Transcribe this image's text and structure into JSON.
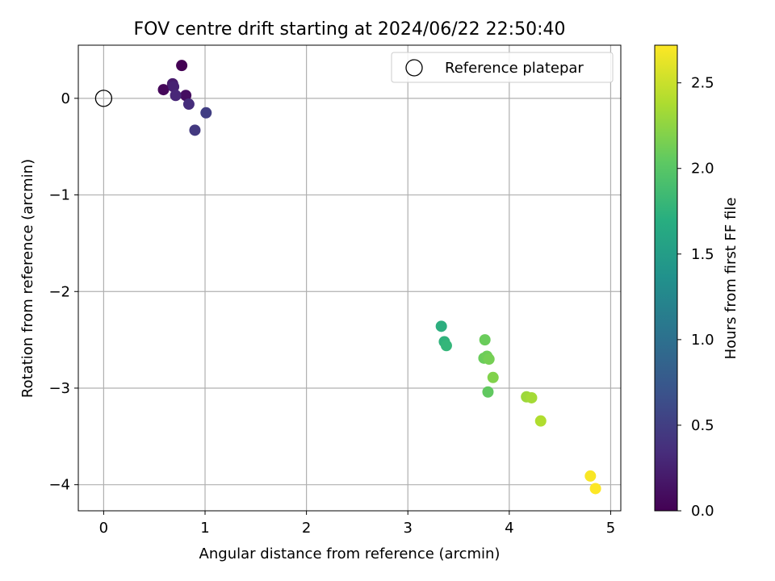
{
  "chart_data": {
    "type": "scatter",
    "title": "FOV centre drift starting at 2024/06/22 22:50:40",
    "xlabel": "Angular distance from reference (arcmin)",
    "ylabel": "Rotation from reference (arcmin)",
    "xlim": [
      -0.25,
      5.1
    ],
    "ylim": [
      -4.27,
      0.55
    ],
    "xticks": [
      0,
      1,
      2,
      3,
      4,
      5
    ],
    "xtick_labels": [
      "0",
      "1",
      "2",
      "3",
      "4",
      "5"
    ],
    "yticks": [
      0,
      -1,
      -2,
      -3,
      -4
    ],
    "ytick_labels": [
      "0",
      "−1",
      "−2",
      "−3",
      "−4"
    ],
    "grid": true,
    "legend": {
      "position": "top-right",
      "label": "Reference platepar"
    },
    "reference_point": {
      "x": 0,
      "y": 0
    },
    "colorbar": {
      "label": "Hours from first FF file",
      "colormap": "viridis",
      "range": [
        0.0,
        2.72
      ],
      "ticks": [
        0.0,
        0.5,
        1.0,
        1.5,
        2.0,
        2.5
      ],
      "tick_labels": [
        "0.0",
        "0.5",
        "1.0",
        "1.5",
        "2.0",
        "2.5"
      ]
    },
    "points": [
      {
        "x": 0.77,
        "y": 0.34,
        "hours": 0.0
      },
      {
        "x": 0.59,
        "y": 0.09,
        "hours": 0.05
      },
      {
        "x": 0.81,
        "y": 0.03,
        "hours": 0.1
      },
      {
        "x": 0.68,
        "y": 0.15,
        "hours": 0.2
      },
      {
        "x": 0.69,
        "y": 0.12,
        "hours": 0.25
      },
      {
        "x": 0.71,
        "y": 0.03,
        "hours": 0.3
      },
      {
        "x": 0.84,
        "y": -0.06,
        "hours": 0.35
      },
      {
        "x": 0.9,
        "y": -0.33,
        "hours": 0.45
      },
      {
        "x": 1.01,
        "y": -0.15,
        "hours": 0.5
      },
      {
        "x": 3.33,
        "y": -2.36,
        "hours": 1.7
      },
      {
        "x": 3.36,
        "y": -2.52,
        "hours": 1.75
      },
      {
        "x": 3.38,
        "y": -2.56,
        "hours": 1.8
      },
      {
        "x": 3.76,
        "y": -2.5,
        "hours": 2.1
      },
      {
        "x": 3.75,
        "y": -2.69,
        "hours": 2.1
      },
      {
        "x": 3.78,
        "y": -2.67,
        "hours": 2.12
      },
      {
        "x": 3.8,
        "y": -2.7,
        "hours": 2.15
      },
      {
        "x": 3.84,
        "y": -2.89,
        "hours": 2.2
      },
      {
        "x": 3.79,
        "y": -3.04,
        "hours": 2.05
      },
      {
        "x": 4.17,
        "y": -3.09,
        "hours": 2.32
      },
      {
        "x": 4.22,
        "y": -3.1,
        "hours": 2.35
      },
      {
        "x": 4.31,
        "y": -3.34,
        "hours": 2.4
      },
      {
        "x": 4.8,
        "y": -3.91,
        "hours": 2.7
      },
      {
        "x": 4.85,
        "y": -4.04,
        "hours": 2.72
      }
    ]
  }
}
